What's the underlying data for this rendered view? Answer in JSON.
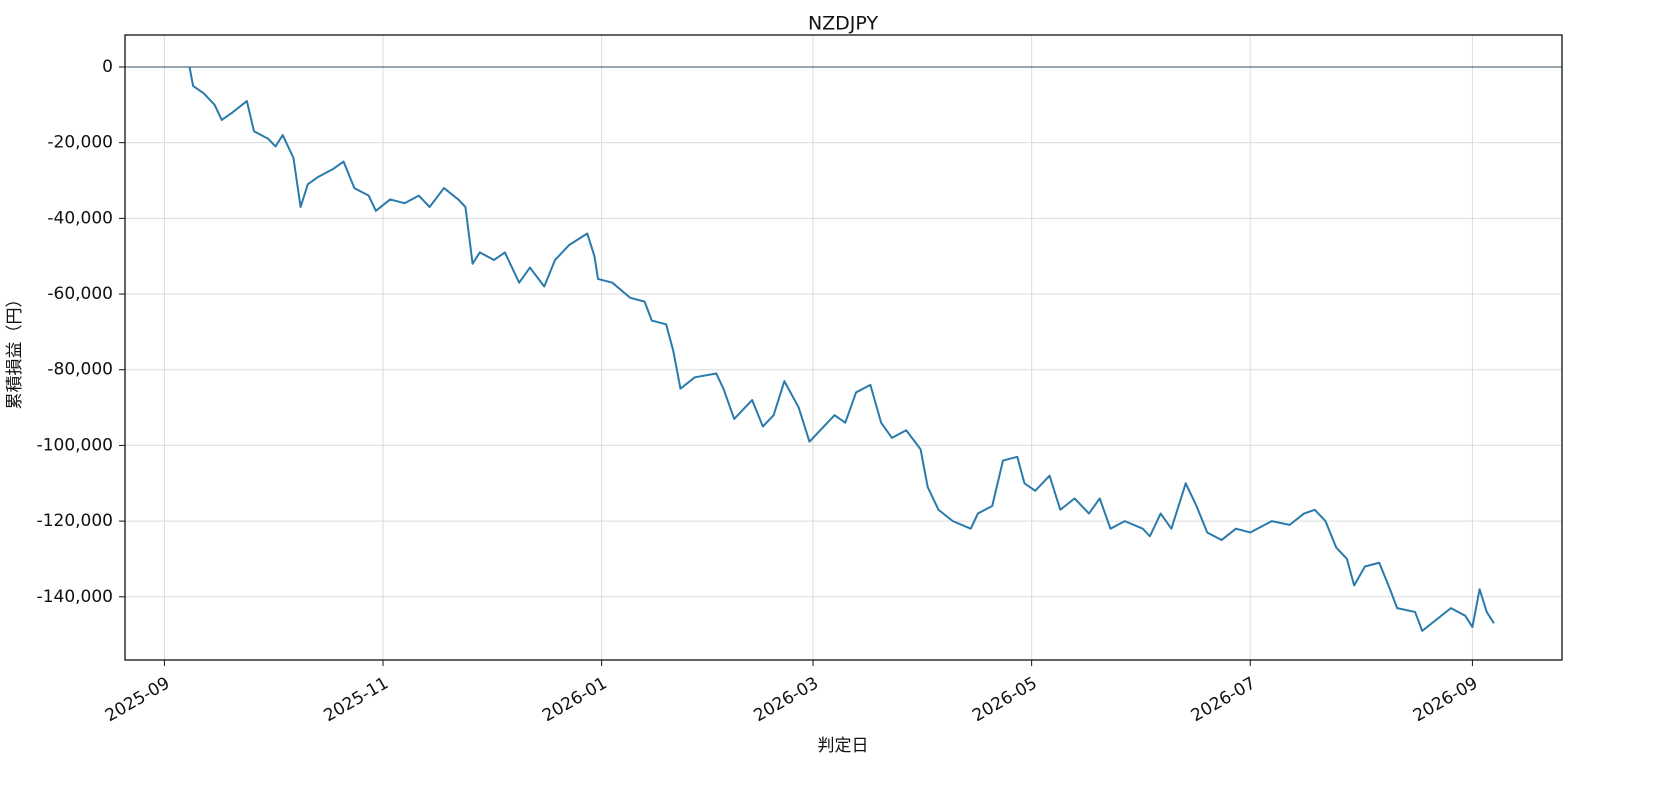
{
  "chart_data": {
    "type": "line",
    "title": "NZDJPY",
    "xlabel": "判定日",
    "ylabel": "累積損益（円）",
    "x": [
      "2025-09-08",
      "2025-09-09",
      "2025-09-12",
      "2025-09-15",
      "2025-09-17",
      "2025-09-20",
      "2025-09-24",
      "2025-09-26",
      "2025-09-30",
      "2025-10-02",
      "2025-10-04",
      "2025-10-07",
      "2025-10-09",
      "2025-10-11",
      "2025-10-14",
      "2025-10-18",
      "2025-10-21",
      "2025-10-24",
      "2025-10-28",
      "2025-10-30",
      "2025-11-03",
      "2025-11-07",
      "2025-11-11",
      "2025-11-14",
      "2025-11-18",
      "2025-11-22",
      "2025-11-24",
      "2025-11-26",
      "2025-11-28",
      "2025-12-02",
      "2025-12-05",
      "2025-12-09",
      "2025-12-12",
      "2025-12-16",
      "2025-12-19",
      "2025-12-23",
      "2025-12-28",
      "2025-12-30",
      "2025-12-31",
      "2026-01-04",
      "2026-01-09",
      "2026-01-13",
      "2026-01-15",
      "2026-01-19",
      "2026-01-21",
      "2026-01-23",
      "2026-01-27",
      "2026-02-02",
      "2026-02-04",
      "2026-02-07",
      "2026-02-12",
      "2026-02-15",
      "2026-02-18",
      "2026-02-21",
      "2026-02-25",
      "2026-02-28",
      "2026-03-03",
      "2026-03-07",
      "2026-03-10",
      "2026-03-13",
      "2026-03-17",
      "2026-03-20",
      "2026-03-23",
      "2026-03-27",
      "2026-03-31",
      "2026-04-02",
      "2026-04-05",
      "2026-04-09",
      "2026-04-14",
      "2026-04-16",
      "2026-04-20",
      "2026-04-23",
      "2026-04-27",
      "2026-04-29",
      "2026-05-02",
      "2026-05-06",
      "2026-05-09",
      "2026-05-13",
      "2026-05-17",
      "2026-05-20",
      "2026-05-23",
      "2026-05-27",
      "2026-06-01",
      "2026-06-03",
      "2026-06-06",
      "2026-06-09",
      "2026-06-13",
      "2026-06-16",
      "2026-06-19",
      "2026-06-23",
      "2026-06-27",
      "2026-07-01",
      "2026-07-07",
      "2026-07-12",
      "2026-07-16",
      "2026-07-19",
      "2026-07-22",
      "2026-07-25",
      "2026-07-28",
      "2026-07-30",
      "2026-08-02",
      "2026-08-06",
      "2026-08-09",
      "2026-08-11",
      "2026-08-16",
      "2026-08-18",
      "2026-08-22",
      "2026-08-26",
      "2026-08-30",
      "2026-09-01",
      "2026-09-03",
      "2026-09-05",
      "2026-09-07"
    ],
    "series": [
      {
        "name": "NZDJPY",
        "color": "#2a7aab",
        "values": [
          0,
          -5000,
          -7000,
          -10000,
          -14000,
          -12000,
          -9000,
          -17000,
          -19000,
          -21000,
          -18000,
          -24000,
          -37000,
          -31000,
          -29000,
          -27000,
          -25000,
          -32000,
          -34000,
          -38000,
          -35000,
          -36000,
          -34000,
          -37000,
          -32000,
          -35000,
          -37000,
          -52000,
          -49000,
          -51000,
          -49000,
          -57000,
          -53000,
          -58000,
          -51000,
          -47000,
          -44000,
          -50000,
          -56000,
          -57000,
          -61000,
          -62000,
          -67000,
          -68000,
          -75000,
          -85000,
          -82000,
          -81000,
          -85000,
          -93000,
          -88000,
          -95000,
          -92000,
          -83000,
          -90000,
          -99000,
          -96000,
          -92000,
          -94000,
          -86000,
          -84000,
          -94000,
          -98000,
          -96000,
          -101000,
          -111000,
          -117000,
          -120000,
          -122000,
          -118000,
          -116000,
          -104000,
          -103000,
          -110000,
          -112000,
          -108000,
          -117000,
          -114000,
          -118000,
          -114000,
          -122000,
          -120000,
          -122000,
          -124000,
          -118000,
          -122000,
          -110000,
          -116000,
          -123000,
          -125000,
          -122000,
          -123000,
          -120000,
          -121000,
          -118000,
          -117000,
          -120000,
          -127000,
          -130000,
          -137000,
          -132000,
          -131000,
          -138000,
          -143000,
          -144000,
          -149000,
          -146000,
          -143000,
          -145000,
          -148000,
          -138000,
          -144000,
          -147000
        ]
      }
    ],
    "xlim": [
      "2025-08-21",
      "2026-09-26"
    ],
    "xticks": [
      {
        "value": "2025-09-01",
        "label": "2025-09"
      },
      {
        "value": "2025-11-01",
        "label": "2025-11"
      },
      {
        "value": "2026-01-01",
        "label": "2026-01"
      },
      {
        "value": "2026-03-01",
        "label": "2026-03"
      },
      {
        "value": "2026-05-01",
        "label": "2026-05"
      },
      {
        "value": "2026-07-01",
        "label": "2026-07"
      },
      {
        "value": "2026-09-01",
        "label": "2026-09"
      }
    ],
    "ylim": [
      -156700,
      8450
    ],
    "yticks": [
      0,
      {
        "value": -20000,
        "label": "-20,000"
      },
      {
        "value": -40000,
        "label": "-40,000"
      },
      {
        "value": -60000,
        "label": "-60,000"
      },
      {
        "value": -80000,
        "label": "-80,000"
      },
      {
        "value": -100000,
        "label": "-100,000"
      },
      {
        "value": -120000,
        "label": "-120,000"
      },
      {
        "value": -140000,
        "label": "-140,000"
      }
    ],
    "grid": true,
    "hline": 0,
    "hline_color": "#5b7080"
  }
}
